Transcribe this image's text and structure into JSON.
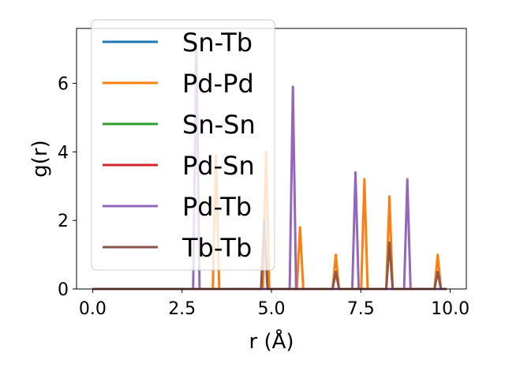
{
  "chart_data": {
    "type": "line",
    "title": "",
    "xlabel": "r (Å)",
    "ylabel": "g(r)",
    "xlim": [
      -0.45,
      10.45
    ],
    "ylim": [
      0,
      7.6
    ],
    "xticks": [
      0.0,
      2.5,
      5.0,
      7.5,
      10.0
    ],
    "xtick_labels": [
      "0.0",
      "2.5",
      "5.0",
      "7.5",
      "10.0"
    ],
    "yticks": [
      0,
      2,
      4,
      6
    ],
    "ytick_labels": [
      "0",
      "2",
      "4",
      "6"
    ],
    "grid": false,
    "legend_position": "upper-left",
    "series": [
      {
        "name": "Sn-Tb",
        "color": "#1f77b4",
        "peaks": []
      },
      {
        "name": "Pd-Pd",
        "color": "#ff7f0e",
        "peaks": [
          {
            "r": 3.45,
            "g": 3.9
          },
          {
            "r": 4.85,
            "g": 4.0
          },
          {
            "r": 5.8,
            "g": 1.8
          },
          {
            "r": 6.8,
            "g": 1.0
          },
          {
            "r": 7.6,
            "g": 3.2
          },
          {
            "r": 8.3,
            "g": 2.7
          },
          {
            "r": 9.65,
            "g": 1.0
          }
        ]
      },
      {
        "name": "Sn-Sn",
        "color": "#2ca02c",
        "peaks": []
      },
      {
        "name": "Pd-Sn",
        "color": "#d62728",
        "peaks": []
      },
      {
        "name": "Pd-Tb",
        "color": "#9467bd",
        "peaks": [
          {
            "r": 2.9,
            "g": 7.0
          },
          {
            "r": 5.6,
            "g": 5.9
          },
          {
            "r": 7.35,
            "g": 3.4
          },
          {
            "r": 8.8,
            "g": 3.2
          }
        ]
      },
      {
        "name": "Tb-Tb",
        "color": "#8c564b",
        "peaks": [
          {
            "r": 4.8,
            "g": 2.0
          },
          {
            "r": 6.8,
            "g": 0.5
          },
          {
            "r": 8.3,
            "g": 1.35
          },
          {
            "r": 9.65,
            "g": 0.5
          }
        ]
      }
    ]
  }
}
